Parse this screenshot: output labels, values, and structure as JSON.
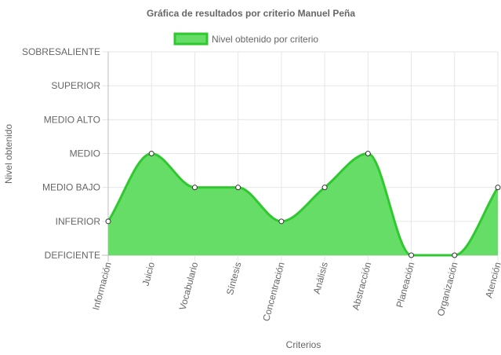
{
  "chart_data": {
    "type": "area",
    "title": "Gráfica de resultados por criterio Manuel Peña",
    "xlabel": "Criterios",
    "ylabel": "Nivel obtenido",
    "categories": [
      "Información",
      "Juicio",
      "Vocabulario",
      "Síntesis",
      "Concentración",
      "Análisis",
      "Abstracción",
      "Planeación",
      "Organización",
      "Atención"
    ],
    "y_levels": [
      "DEFICIENTE",
      "INFERIOR",
      "MEDIO BAJO",
      "MEDIO",
      "MEDIO ALTO",
      "SUPERIOR",
      "SOBRESALIENTE"
    ],
    "series": [
      {
        "name": "Nivel obtenido por criterio",
        "values": [
          1,
          3,
          2,
          2,
          1,
          2,
          3,
          0,
          0,
          2
        ]
      }
    ],
    "ylim": [
      0,
      6
    ],
    "grid": true,
    "legend_position": "top",
    "colors": {
      "fill": "#66dd66",
      "stroke": "#2ec92e",
      "grid": "#e6e6e6",
      "axis": "#bdbdbd"
    }
  }
}
